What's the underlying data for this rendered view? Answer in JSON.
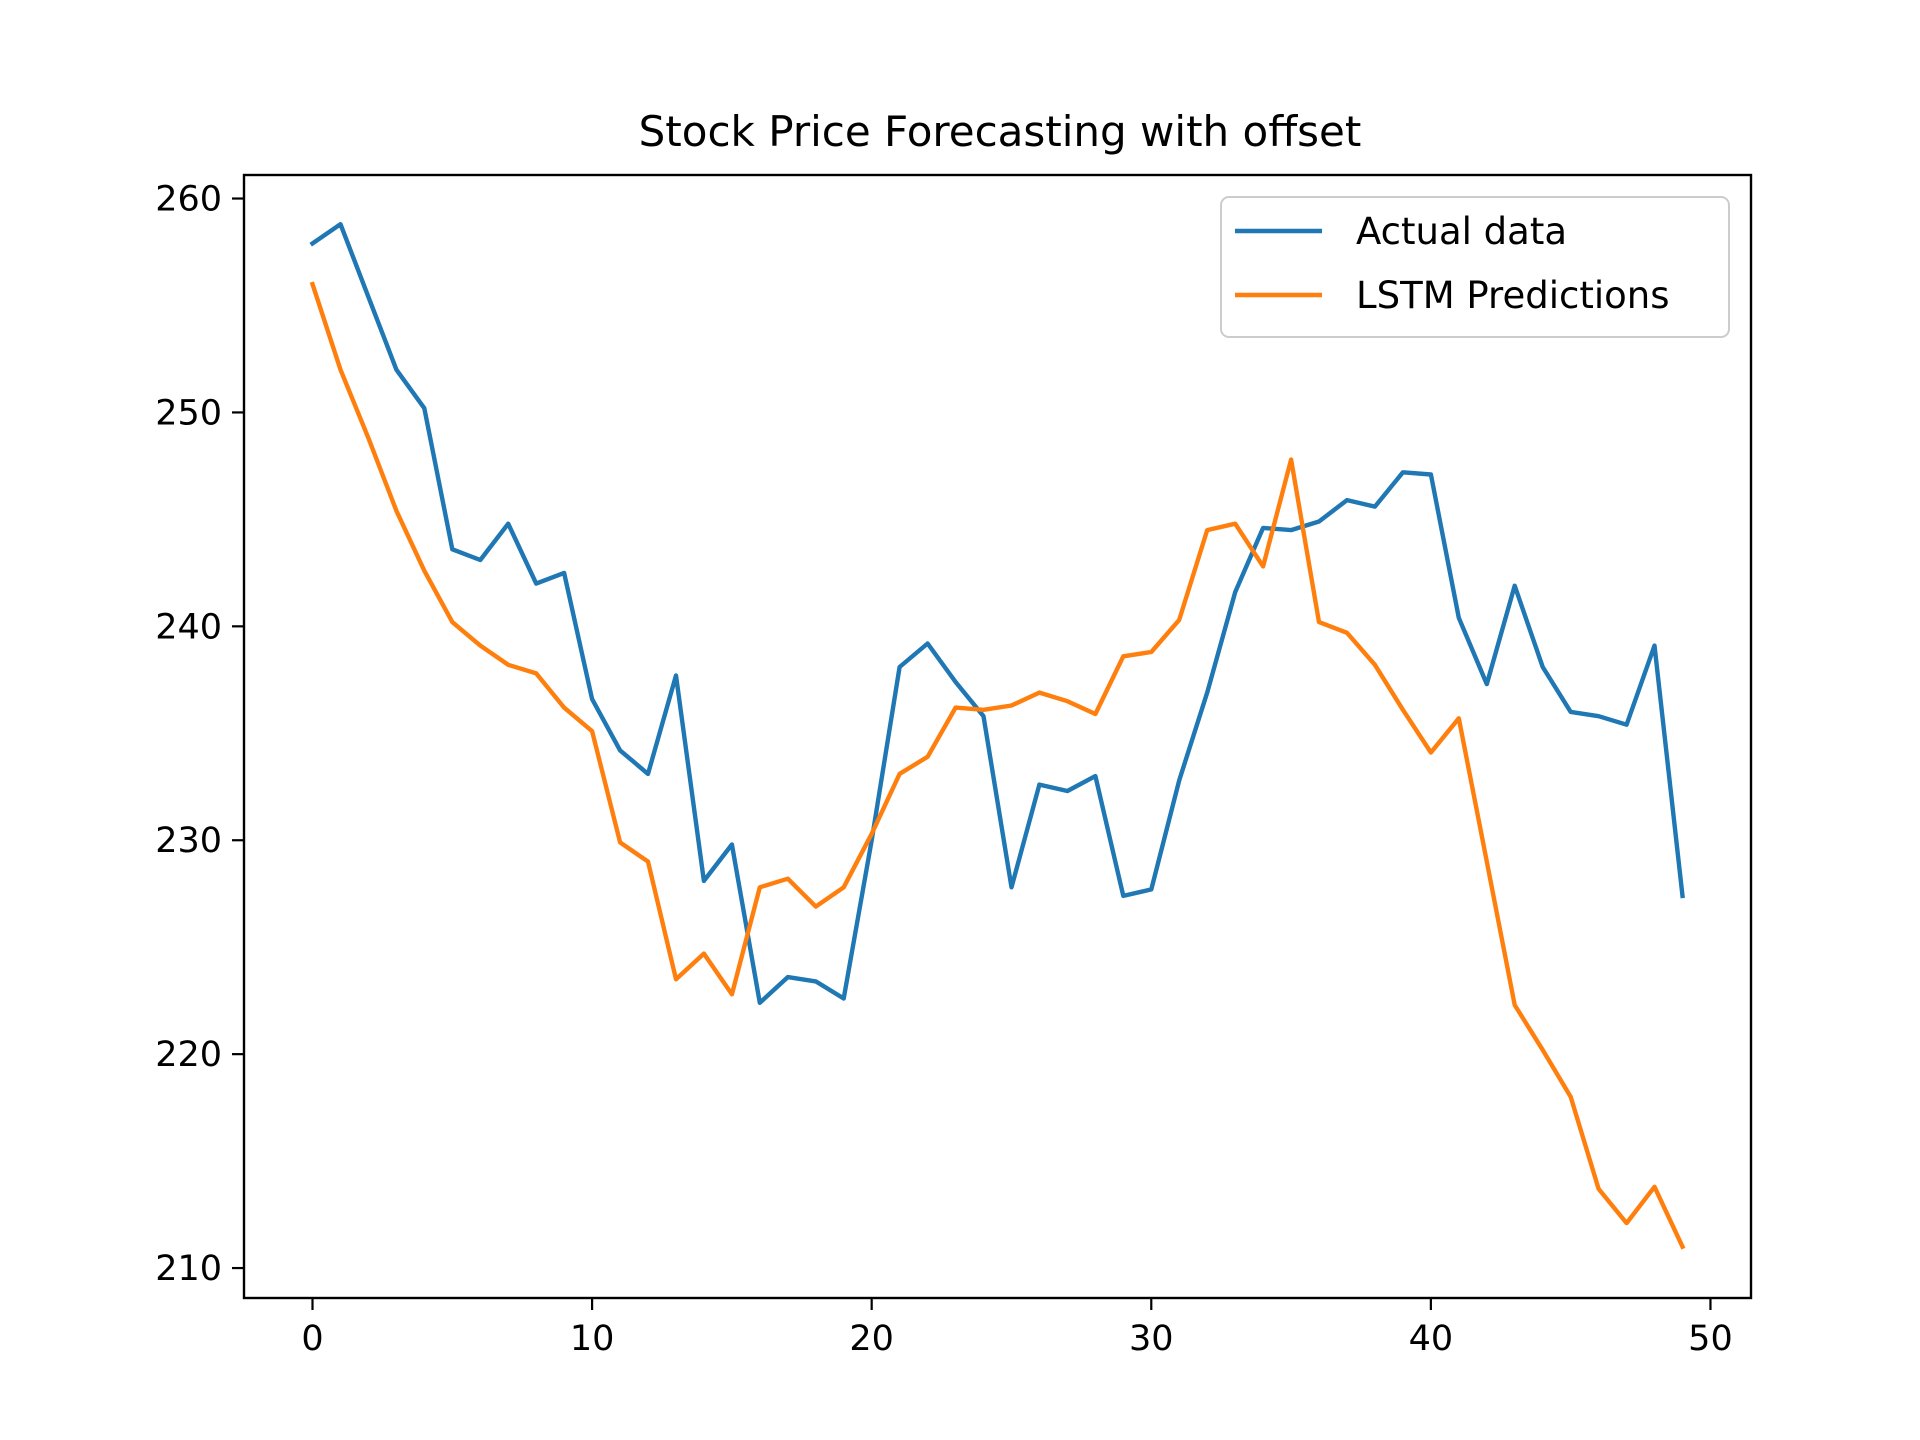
{
  "chart_data": {
    "type": "line",
    "title": "Stock Price Forecasting with offset",
    "xlabel": "",
    "ylabel": "",
    "xlim": [
      -2.45,
      51.45
    ],
    "ylim": [
      208.6,
      261.1
    ],
    "xticks": [
      0,
      10,
      20,
      30,
      40,
      50
    ],
    "yticks": [
      210,
      220,
      230,
      240,
      250,
      260
    ],
    "grid": false,
    "legend_position": "top-right",
    "x": [
      0,
      1,
      2,
      3,
      4,
      5,
      6,
      7,
      8,
      9,
      10,
      11,
      12,
      13,
      14,
      15,
      16,
      17,
      18,
      19,
      20,
      21,
      22,
      23,
      24,
      25,
      26,
      27,
      28,
      29,
      30,
      31,
      32,
      33,
      34,
      35,
      36,
      37,
      38,
      39,
      40,
      41,
      42,
      43,
      44,
      45,
      46,
      47,
      48,
      49
    ],
    "series": [
      {
        "name": "Actual data",
        "color": "#1f77b4",
        "values": [
          257.9,
          258.8,
          255.4,
          252.0,
          250.2,
          243.6,
          243.1,
          244.8,
          242.0,
          242.5,
          236.6,
          234.2,
          233.1,
          237.7,
          228.1,
          229.8,
          222.4,
          223.6,
          223.4,
          222.6,
          230.0,
          238.1,
          239.2,
          237.4,
          235.8,
          227.8,
          232.6,
          232.3,
          233.0,
          227.4,
          227.7,
          232.8,
          236.9,
          241.6,
          244.6,
          244.5,
          244.9,
          245.9,
          245.6,
          247.2,
          247.1,
          240.4,
          237.3,
          241.9,
          238.1,
          236.0,
          235.8,
          235.4,
          239.1,
          227.4
        ]
      },
      {
        "name": "LSTM Predictions",
        "color": "#ff7f0e",
        "values": [
          256.0,
          252.0,
          248.8,
          245.4,
          242.6,
          240.2,
          239.1,
          238.2,
          237.8,
          236.2,
          235.1,
          229.9,
          229.0,
          223.5,
          224.7,
          222.8,
          227.8,
          228.2,
          226.9,
          227.8,
          230.3,
          233.1,
          233.9,
          236.2,
          236.1,
          236.3,
          236.9,
          236.5,
          235.9,
          238.6,
          238.8,
          240.3,
          244.5,
          244.8,
          242.8,
          247.8,
          240.2,
          239.7,
          238.2,
          236.1,
          234.1,
          235.7,
          229.0,
          222.3,
          220.2,
          218.0,
          213.7,
          212.1,
          213.8,
          211.0
        ]
      }
    ]
  }
}
